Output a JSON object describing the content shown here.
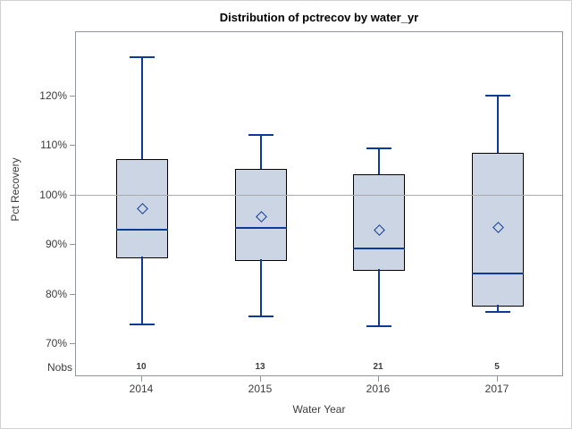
{
  "chart_data": {
    "type": "boxplot",
    "title": "Distribution of pctrecov by water_yr",
    "xlabel": "Water Year",
    "ylabel": "Pct Recovery",
    "nobs_row_label": "Nobs",
    "categories": [
      "2014",
      "2015",
      "2016",
      "2017"
    ],
    "yticks": [
      {
        "value": 70,
        "label": "70%"
      },
      {
        "value": 80,
        "label": "80%"
      },
      {
        "value": 90,
        "label": "90%"
      },
      {
        "value": 100,
        "label": "100%"
      },
      {
        "value": 110,
        "label": "110%"
      },
      {
        "value": 120,
        "label": "120%"
      }
    ],
    "ylim": [
      63,
      133
    ],
    "reference_line": 100,
    "grid": "horizontal reference line at 100% only",
    "legend": "none",
    "series": [
      {
        "category": "2014",
        "nobs": 10,
        "low": 74.0,
        "q1": 87.7,
        "median": 93.1,
        "q3": 107.3,
        "high": 127.9,
        "mean": 97.3
      },
      {
        "category": "2015",
        "nobs": 13,
        "low": 75.6,
        "q1": 87.1,
        "median": 93.4,
        "q3": 105.3,
        "high": 112.2,
        "mean": 95.6
      },
      {
        "category": "2016",
        "nobs": 21,
        "low": 73.6,
        "q1": 85.2,
        "median": 89.3,
        "q3": 104.2,
        "high": 109.4,
        "mean": 92.9
      },
      {
        "category": "2017",
        "nobs": 5,
        "low": 76.4,
        "q1": 77.9,
        "median": 84.3,
        "q3": 108.6,
        "high": 120.1,
        "mean": 93.6
      }
    ],
    "colors": {
      "box_fill": "#ccd5e4",
      "box_border": "#000000",
      "whisker_line": "#0c3a96",
      "median_line": "#0c3a96",
      "mean_marker": "#0c3a96",
      "reference_line": "#ababab",
      "frame": "#8e979d",
      "axis_text": "#3c3c3c",
      "title_text": "#000000",
      "background": "#ffffff",
      "outer_border": "#d2d2d2"
    }
  }
}
